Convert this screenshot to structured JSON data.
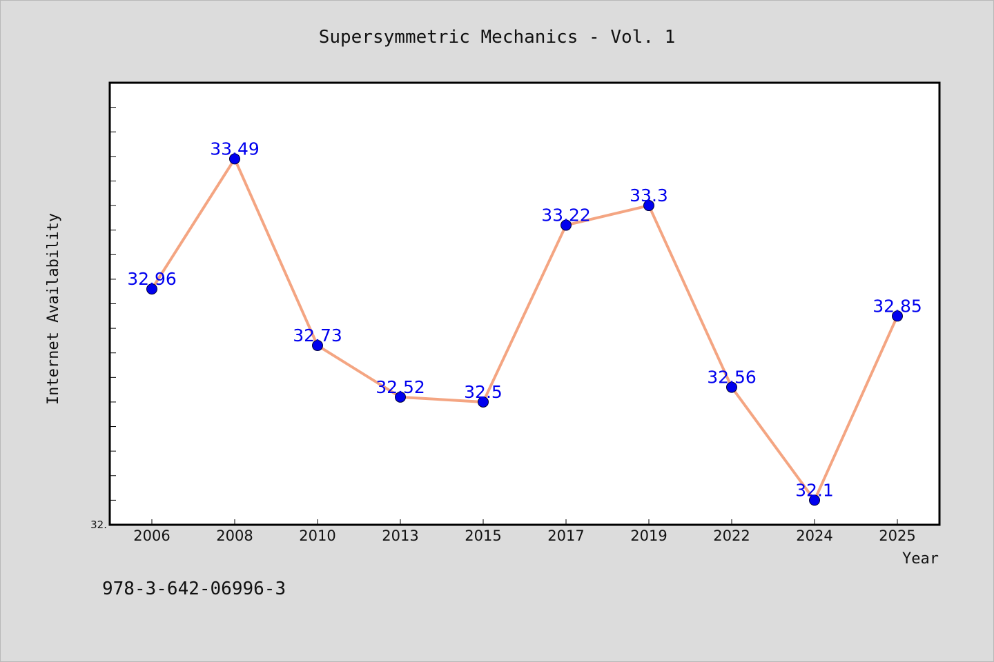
{
  "chart_data": {
    "type": "line",
    "title": "Supersymmetric Mechanics - Vol. 1",
    "xlabel": "Year",
    "ylabel": "Internet Availability",
    "categories": [
      "2006",
      "2008",
      "2010",
      "2013",
      "2015",
      "2017",
      "2019",
      "2022",
      "2024",
      "2025"
    ],
    "series": [
      {
        "values": [
          32.96,
          33.49,
          32.73,
          32.52,
          32.5,
          33.22,
          33.3,
          32.56,
          32.1,
          32.85
        ],
        "line_color": "#f4a582",
        "marker_color": "#0000ee"
      }
    ],
    "data_labels": [
      "32.96",
      "33.49",
      "32.73",
      "32.52",
      "32.5",
      "33.22",
      "33.3",
      "32.56",
      "32.1",
      "32.85"
    ],
    "ylim": [
      32.0,
      33.8
    ],
    "y_tick_labels": [
      "32."
    ],
    "grid": false,
    "legend": "none",
    "annotation": "978-3-642-06996-3",
    "colors": {
      "background": "#dcdcdc",
      "plot_background": "#ffffff",
      "data_label": "#0000ee"
    }
  }
}
